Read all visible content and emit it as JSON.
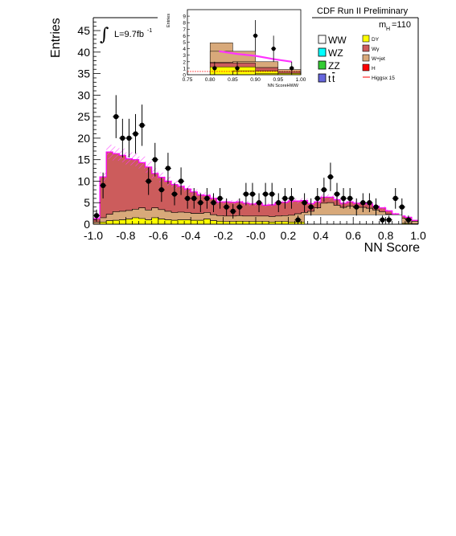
{
  "chart_data": [
    {
      "type": "histogram-stack",
      "title": "CDF Run II Preliminary",
      "xlabel": "NN Score",
      "ylabel": "Entries",
      "xlim": [
        -1.0,
        1.0
      ],
      "ylim": [
        0,
        48
      ],
      "x_ticks": [
        "-1.0",
        "-0.8",
        "-0.6",
        "-0.4",
        "-0.2",
        "-0.0",
        "0.2",
        "0.4",
        "0.6",
        "0.8",
        "1.0"
      ],
      "y_ticks": [
        "0",
        "5",
        "10",
        "15",
        "20",
        "25",
        "30",
        "35",
        "40",
        "45"
      ],
      "luminosity_label": "L=9.7fb",
      "luminosity_sup": "-1",
      "mass_label": "m",
      "mass_sub": "H",
      "mass_value": "=110",
      "bin_width": 0.04,
      "bin_edges_start": -1.0,
      "stack_order": [
        "DY",
        "W+jet",
        "Wγ"
      ],
      "series": [
        {
          "name": "DY",
          "color": "#ffff00",
          "values": [
            0,
            0.5,
            0.8,
            0.9,
            1,
            1.2,
            1.5,
            1.3,
            1,
            1.5,
            1.2,
            1,
            0.9,
            1,
            1,
            0.9,
            0.9,
            1.2,
            0.8,
            0.7,
            0.6,
            0.6,
            0.7,
            0.6,
            0.6,
            0.6,
            0.6,
            0.5,
            0.6,
            0.6,
            0.5,
            0.5,
            0.5,
            0.4,
            0.4,
            0.4,
            0.5,
            0.4,
            0.3,
            0.3,
            0.3,
            0.3,
            0.3,
            0.3,
            0.3,
            0.3,
            0.3,
            0.2,
            0.2,
            0.1
          ]
        },
        {
          "name": "Wγ",
          "color": "#cc5c5c",
          "values": [
            0.8,
            9.5,
            14.5,
            13.5,
            13,
            12,
            11.5,
            10.5,
            10,
            8,
            7.5,
            7,
            6.5,
            6,
            5.5,
            5,
            4.3,
            4,
            3.8,
            3.2,
            3.3,
            3.2,
            3.2,
            3,
            2.8,
            3,
            2.5,
            2.7,
            3.1,
            3.1,
            3.3,
            3,
            2.8,
            1.8,
            1.4,
            1.4,
            1.3,
            1.3,
            1,
            1,
            1,
            0.9,
            1,
            0.9,
            0.9,
            0.8,
            0.7,
            0.5,
            0.4,
            0.2
          ]
        },
        {
          "name": "W+jet",
          "color": "#d8a97a",
          "values": [
            0.5,
            1,
            1.5,
            2,
            2,
            2,
            2,
            2.5,
            2.3,
            2.3,
            2.2,
            2,
            1.8,
            1.8,
            1.7,
            1.6,
            1.6,
            1.5,
            1.4,
            1.3,
            1.3,
            1.3,
            1.3,
            1.3,
            1.3,
            1.3,
            1.3,
            1.3,
            1.3,
            1.4,
            1.6,
            1.9,
            2.2,
            2.6,
            3.4,
            4.5,
            4.5,
            4,
            3.6,
            3.9,
            3.6,
            3.6,
            3.4,
            3,
            2.6,
            2,
            1.4,
            1.2,
            1,
            0.6
          ]
        }
      ],
      "total_model": [
        1.3,
        11,
        16.8,
        16.4,
        16,
        15.2,
        15,
        14.3,
        13.3,
        11.8,
        10.9,
        10,
        9.2,
        8.8,
        8.2,
        7.5,
        6.8,
        6.7,
        6,
        5.2,
        5.2,
        5.1,
        5.2,
        4.9,
        4.7,
        4.9,
        4.4,
        4.5,
        5,
        5.1,
        5.4,
        5.4,
        5.5,
        4.8,
        5.2,
        6.3,
        6.3,
        5.7,
        4.9,
        5.2,
        4.9,
        4.8,
        4.7,
        4.2,
        3.8,
        3.1,
        2.4,
        1.9,
        1.6,
        0.9
      ],
      "data_points": [
        {
          "x": -0.98,
          "y": 2,
          "err": 1.4
        },
        {
          "x": -0.94,
          "y": 9,
          "err": 3.0
        },
        {
          "x": -0.86,
          "y": 25,
          "err": 5.0
        },
        {
          "x": -0.82,
          "y": 20,
          "err": 4.5
        },
        {
          "x": -0.78,
          "y": 20,
          "err": 4.5
        },
        {
          "x": -0.74,
          "y": 21,
          "err": 4.6
        },
        {
          "x": -0.7,
          "y": 23,
          "err": 4.8
        },
        {
          "x": -0.66,
          "y": 10,
          "err": 3.2
        },
        {
          "x": -0.62,
          "y": 15,
          "err": 3.9
        },
        {
          "x": -0.58,
          "y": 8,
          "err": 2.8
        },
        {
          "x": -0.54,
          "y": 13,
          "err": 3.6
        },
        {
          "x": -0.5,
          "y": 7,
          "err": 2.6
        },
        {
          "x": -0.46,
          "y": 10,
          "err": 3.2
        },
        {
          "x": -0.42,
          "y": 6,
          "err": 2.4
        },
        {
          "x": -0.38,
          "y": 6,
          "err": 2.4
        },
        {
          "x": -0.34,
          "y": 5,
          "err": 2.2
        },
        {
          "x": -0.3,
          "y": 6,
          "err": 2.4
        },
        {
          "x": -0.26,
          "y": 5,
          "err": 2.2
        },
        {
          "x": -0.22,
          "y": 6,
          "err": 2.4
        },
        {
          "x": -0.18,
          "y": 4,
          "err": 2.0
        },
        {
          "x": -0.14,
          "y": 3,
          "err": 1.7
        },
        {
          "x": -0.1,
          "y": 4,
          "err": 2.0
        },
        {
          "x": -0.06,
          "y": 7,
          "err": 2.6
        },
        {
          "x": -0.02,
          "y": 7,
          "err": 2.6
        },
        {
          "x": 0.02,
          "y": 5,
          "err": 2.2
        },
        {
          "x": 0.06,
          "y": 7,
          "err": 2.6
        },
        {
          "x": 0.1,
          "y": 7,
          "err": 2.6
        },
        {
          "x": 0.14,
          "y": 5,
          "err": 2.2
        },
        {
          "x": 0.18,
          "y": 6,
          "err": 2.4
        },
        {
          "x": 0.22,
          "y": 6,
          "err": 2.4
        },
        {
          "x": 0.26,
          "y": 1,
          "err": 1.0
        },
        {
          "x": 0.3,
          "y": 5,
          "err": 2.2
        },
        {
          "x": 0.34,
          "y": 4,
          "err": 2.0
        },
        {
          "x": 0.38,
          "y": 6,
          "err": 2.4
        },
        {
          "x": 0.42,
          "y": 8,
          "err": 2.8
        },
        {
          "x": 0.46,
          "y": 11,
          "err": 3.3
        },
        {
          "x": 0.5,
          "y": 7,
          "err": 2.6
        },
        {
          "x": 0.54,
          "y": 6,
          "err": 2.4
        },
        {
          "x": 0.58,
          "y": 6,
          "err": 2.4
        },
        {
          "x": 0.62,
          "y": 4,
          "err": 2.0
        },
        {
          "x": 0.66,
          "y": 5,
          "err": 2.2
        },
        {
          "x": 0.7,
          "y": 5,
          "err": 2.2
        },
        {
          "x": 0.74,
          "y": 4,
          "err": 2.0
        },
        {
          "x": 0.78,
          "y": 1,
          "err": 1.0
        },
        {
          "x": 0.82,
          "y": 1,
          "err": 1.0
        },
        {
          "x": 0.86,
          "y": 6,
          "err": 2.4
        },
        {
          "x": 0.9,
          "y": 4,
          "err": 2.0
        },
        {
          "x": 0.94,
          "y": 1,
          "err": 1.0
        }
      ],
      "legend": [
        {
          "label": "WW",
          "color": "#ffffff"
        },
        {
          "label": "WZ",
          "color": "#00ffff"
        },
        {
          "label": "ZZ",
          "color": "#33cc33"
        },
        {
          "label": "tt",
          "color": "#6666dd"
        },
        {
          "label": "DY",
          "color": "#ffff00"
        },
        {
          "label": "Wγ",
          "color": "#cc5c5c"
        },
        {
          "label": "W+jet",
          "color": "#d8a97a"
        },
        {
          "label": "H",
          "color": "#ff0000"
        },
        {
          "label": "Higgsx 15",
          "color": "#ff0000"
        }
      ],
      "legend_placement": "top-right",
      "grid": false
    },
    {
      "type": "histogram-stack",
      "title": "",
      "xlabel": "NN ScoreHWW",
      "ylabel": "Entries",
      "xlim": [
        0.75,
        1.0
      ],
      "ylim": [
        0,
        10
      ],
      "x_ticks": [
        "0.75",
        "0.80",
        "0.85",
        "0.90",
        "0.95",
        "1.00"
      ],
      "y_ticks": [
        "0",
        "1",
        "2",
        "3",
        "4",
        "5",
        "6",
        "7",
        "8",
        "9"
      ],
      "bins": [
        0.8,
        0.85,
        0.9,
        0.95,
        1.0
      ],
      "stack": [
        {
          "name": "DY",
          "color": "#ffff00",
          "values": [
            1.0,
            1.2,
            0.6,
            0.2
          ]
        },
        {
          "name": "Wγ",
          "color": "#cc5c5c",
          "values": [
            0.9,
            0.6,
            0.5,
            0.2
          ]
        },
        {
          "name": "W+jet",
          "color": "#d8a97a",
          "values": [
            3.0,
            1.8,
            0.9,
            0.4
          ]
        }
      ],
      "higgs_curve": [
        3.6,
        3.2,
        2.9,
        2.4,
        2.0
      ],
      "data_points": [
        {
          "x": 0.81,
          "y": 1,
          "err": 1.0
        },
        {
          "x": 0.86,
          "y": 1,
          "err": 1.0
        },
        {
          "x": 0.9,
          "y": 6,
          "err": 2.4
        },
        {
          "x": 0.94,
          "y": 4,
          "err": 2.0
        },
        {
          "x": 0.98,
          "y": 1,
          "err": 1.0
        }
      ]
    }
  ]
}
